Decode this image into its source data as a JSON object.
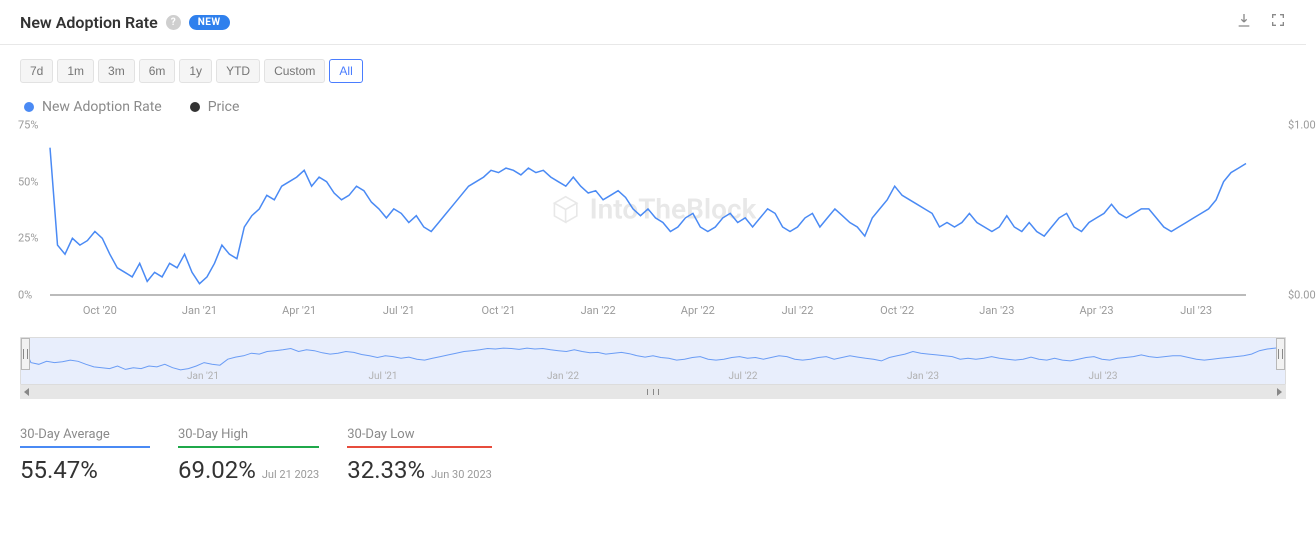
{
  "header": {
    "title": "New Adoption Rate",
    "badge": "NEW"
  },
  "range_buttons": [
    "7d",
    "1m",
    "3m",
    "6m",
    "1y",
    "YTD",
    "Custom",
    "All"
  ],
  "range_active_index": 7,
  "legend": {
    "series1": {
      "label": "New Adoption Rate",
      "color": "#4a8af4"
    },
    "series2": {
      "label": "Price",
      "color": "#333333"
    }
  },
  "watermark": "IntoTheBlock",
  "chart": {
    "type": "line",
    "background_color": "#ffffff",
    "grid_color": "#e8e8e8",
    "line_color": "#4a8af4",
    "line_width": 1.5,
    "y_left": {
      "min": 0,
      "max": 75,
      "ticks": [
        {
          "v": 0,
          "label": "0%"
        },
        {
          "v": 25,
          "label": "25%"
        },
        {
          "v": 50,
          "label": "50%"
        },
        {
          "v": 75,
          "label": "75%"
        }
      ],
      "font_size": 11,
      "color": "#9a9a9a"
    },
    "y_right": {
      "min": 0,
      "max": 1,
      "ticks": [
        {
          "v": 0,
          "label": "$0.00"
        },
        {
          "v": 1,
          "label": "$1.00"
        }
      ],
      "font_size": 11,
      "color": "#9a9a9a"
    },
    "x_labels": [
      "Oct '20",
      "Jan '21",
      "Apr '21",
      "Jul '21",
      "Oct '21",
      "Jan '22",
      "Apr '22",
      "Jul '22",
      "Oct '22",
      "Jan '23",
      "Apr '23",
      "Jul '23"
    ],
    "x_label_font_size": 11,
    "series1_values": [
      65,
      22,
      18,
      25,
      22,
      24,
      28,
      25,
      18,
      12,
      10,
      8,
      14,
      6,
      10,
      8,
      14,
      12,
      18,
      10,
      5,
      8,
      14,
      22,
      18,
      16,
      30,
      35,
      38,
      44,
      42,
      48,
      50,
      52,
      55,
      48,
      52,
      50,
      45,
      42,
      44,
      48,
      46,
      41,
      38,
      34,
      38,
      36,
      32,
      35,
      30,
      28,
      32,
      36,
      40,
      44,
      48,
      50,
      52,
      55,
      54,
      56,
      55,
      53,
      56,
      54,
      55,
      52,
      50,
      48,
      52,
      48,
      45,
      46,
      42,
      44,
      46,
      43,
      38,
      35,
      38,
      34,
      32,
      28,
      30,
      34,
      36,
      30,
      28,
      30,
      34,
      36,
      32,
      34,
      30,
      34,
      38,
      36,
      30,
      28,
      30,
      34,
      36,
      30,
      34,
      38,
      35,
      32,
      30,
      26,
      34,
      38,
      42,
      48,
      44,
      42,
      40,
      38,
      36,
      30,
      32,
      30,
      32,
      36,
      32,
      30,
      28,
      30,
      35,
      30,
      28,
      32,
      28,
      26,
      30,
      34,
      36,
      30,
      28,
      32,
      34,
      36,
      40,
      36,
      34,
      36,
      38,
      38,
      34,
      30,
      28,
      30,
      32,
      34,
      36,
      38,
      42,
      50,
      54,
      56,
      58
    ]
  },
  "navigator": {
    "background_color": "#e8eefc",
    "line_color": "#6a9cf5",
    "x_labels": [
      "Jan '21",
      "Jul '21",
      "Jan '22",
      "Jul '22",
      "Jan '23",
      "Jul '23"
    ]
  },
  "stats": [
    {
      "label": "30-Day Average",
      "value": "55.47%",
      "date": "",
      "underline_color": "#4a8af4"
    },
    {
      "label": "30-Day High",
      "value": "69.02%",
      "date": "Jul 21 2023",
      "underline_color": "#1fa84a"
    },
    {
      "label": "30-Day Low",
      "value": "32.33%",
      "date": "Jun 30 2023",
      "underline_color": "#e74c3c"
    }
  ],
  "colors": {
    "text_primary": "#333333",
    "text_muted": "#8a8a8a",
    "badge_bg": "#2f80ed",
    "btn_bg": "#f5f5f5",
    "btn_border": "#e2e2e2",
    "btn_active_border": "#4a7dff"
  }
}
